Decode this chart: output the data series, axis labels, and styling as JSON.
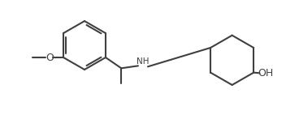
{
  "bg_color": "#ffffff",
  "bond_color": "#404040",
  "text_color": "#404040",
  "line_width": 1.5,
  "font_size": 7.5,
  "figsize": [
    3.68,
    1.52
  ],
  "dpi": 100,
  "xlim": [
    -0.5,
    10.5
  ],
  "ylim": [
    -0.2,
    4.3
  ]
}
